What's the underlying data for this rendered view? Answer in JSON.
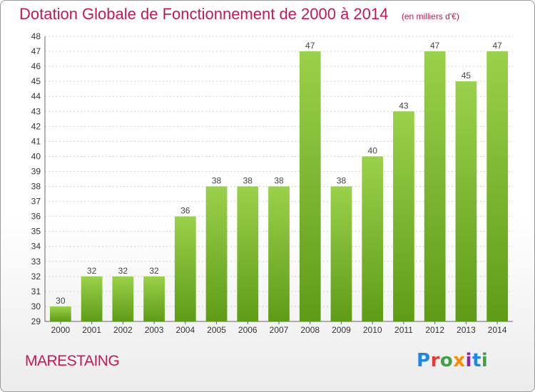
{
  "title": "Dotation Globale de Fonctionnement de 2000 à 2014",
  "unit_note": "(en milliers d'€)",
  "commune": "MARESTAING",
  "logo": {
    "text": "Proxiti",
    "letters": [
      {
        "ch": "P",
        "color": "#1e88e5"
      },
      {
        "ch": "r",
        "color": "#e53935"
      },
      {
        "ch": "o",
        "color": "#43a047"
      },
      {
        "ch": "x",
        "color": "#fb8c00"
      },
      {
        "ch": "i",
        "color": "#8e24aa"
      },
      {
        "ch": "t",
        "color": "#1e88e5"
      },
      {
        "ch": "i",
        "color": "#43a047"
      }
    ]
  },
  "colors": {
    "bar_top": "#9ad14b",
    "bar_bottom": "#5f9c16",
    "grid": "#d2d2d2",
    "axis": "#666666"
  },
  "chart_data": {
    "type": "bar",
    "categories": [
      "2000",
      "2001",
      "2002",
      "2003",
      "2004",
      "2005",
      "2006",
      "2007",
      "2008",
      "2009",
      "2010",
      "2011",
      "2012",
      "2013",
      "2014"
    ],
    "values": [
      30,
      32,
      32,
      32,
      36,
      38,
      38,
      38,
      47,
      38,
      40,
      43,
      47,
      45,
      47
    ],
    "ylim": [
      29,
      48
    ],
    "yticks": [
      29,
      30,
      31,
      32,
      33,
      34,
      35,
      36,
      37,
      38,
      39,
      40,
      41,
      42,
      43,
      44,
      45,
      46,
      47,
      48
    ],
    "grid": true,
    "xlabel": "",
    "ylabel": ""
  }
}
